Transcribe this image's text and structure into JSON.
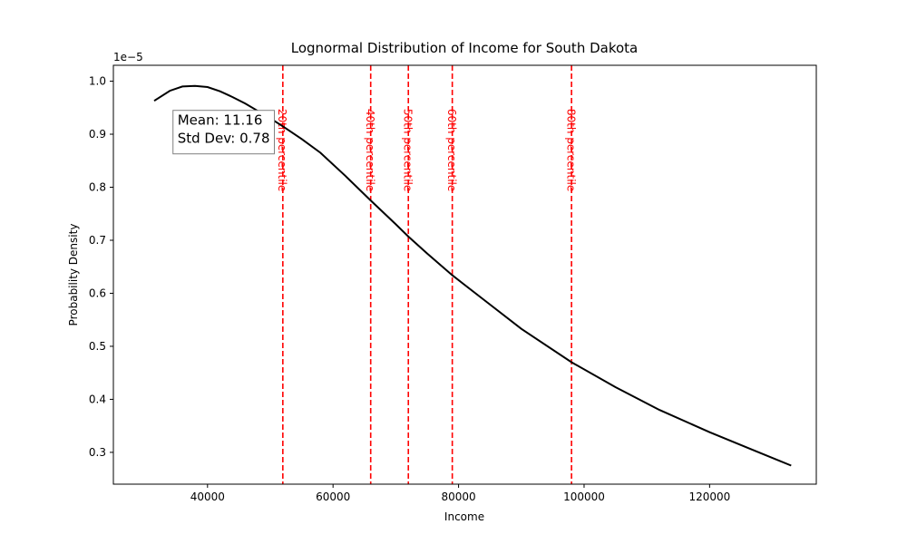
{
  "chart_data": {
    "type": "line",
    "title": "Lognormal Distribution of Income for South Dakota",
    "xlabel": "Income",
    "ylabel": "Probability Density",
    "y_offset_text": "1e−5",
    "xlim": [
      25000,
      137000
    ],
    "ylim": [
      0.24,
      1.03
    ],
    "x_ticks": [
      40000,
      60000,
      80000,
      100000,
      120000
    ],
    "x_tick_labels": [
      "40000",
      "60000",
      "80000",
      "100000",
      "120000"
    ],
    "y_ticks": [
      0.3,
      0.4,
      0.5,
      0.6,
      0.7,
      0.8,
      0.9,
      1.0
    ],
    "y_tick_labels": [
      "0.3",
      "0.4",
      "0.5",
      "0.6",
      "0.7",
      "0.8",
      "0.9",
      "1.0"
    ],
    "series": [
      {
        "color": "#000000",
        "x": [
          31500,
          34000,
          36000,
          38000,
          40000,
          42000,
          44000,
          46000,
          48000,
          50000,
          52000,
          55000,
          58000,
          62000,
          66000,
          70000,
          72000,
          75000,
          79000,
          84000,
          90000,
          98000,
          105000,
          112000,
          120000,
          127000,
          133000
        ],
        "y": [
          0.963,
          0.982,
          0.99,
          0.991,
          0.989,
          0.981,
          0.97,
          0.958,
          0.944,
          0.93,
          0.915,
          0.891,
          0.865,
          0.821,
          0.775,
          0.73,
          0.707,
          0.675,
          0.634,
          0.588,
          0.533,
          0.47,
          0.423,
          0.38,
          0.338,
          0.304,
          0.275
        ]
      }
    ],
    "percentile_lines": [
      {
        "x": 52000,
        "label": "20th percentile"
      },
      {
        "x": 66000,
        "label": "40th percentile"
      },
      {
        "x": 72000,
        "label": "50th percentile"
      },
      {
        "x": 79000,
        "label": "60th percentile"
      },
      {
        "x": 98000,
        "label": "80th percentile"
      }
    ],
    "percentile_label_y": 0.87,
    "percentile_color": "#ff0000",
    "annotation": {
      "lines": [
        "Mean: 11.16",
        "Std Dev: 0.78"
      ],
      "anchor_x": 34500,
      "anchor_y": 0.945
    },
    "grid": false,
    "legend": "none"
  }
}
